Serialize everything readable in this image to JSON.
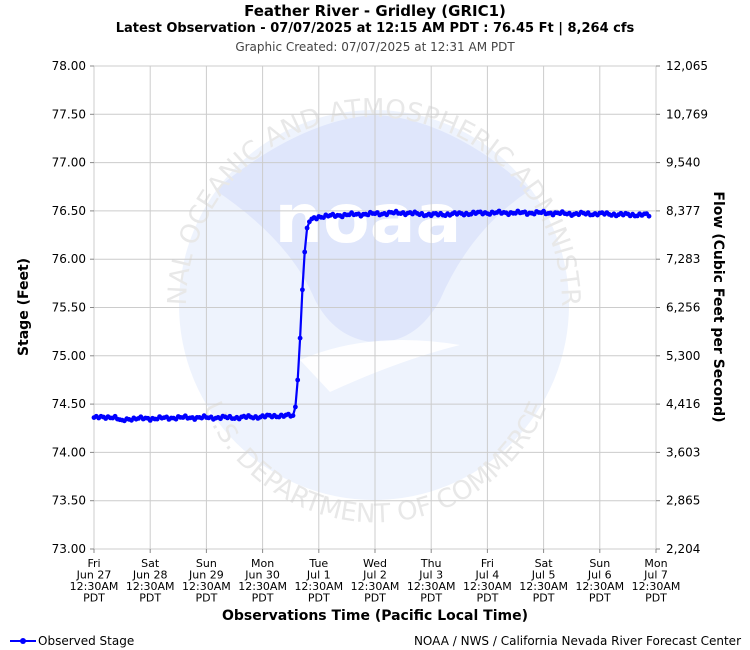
{
  "header": {
    "title": "Feather River - Gridley (GRIC1)",
    "subtitle": "Latest Observation - 07/07/2025 at 12:15 AM PDT : 76.45 Ft | 8,264 cfs",
    "created": "Graphic Created: 07/07/2025 at 12:31 AM PDT"
  },
  "legend": {
    "observed_label": "Observed Stage"
  },
  "credit": "NOAA / NWS / California Nevada River Forecast Center",
  "watermark": {
    "logo_text": "noaa",
    "ring_top": "NATIONAL OCEANIC AND ATMOSPHERIC ADMINISTRATION",
    "ring_bottom": "U.S. DEPARTMENT OF COMMERCE"
  },
  "colors": {
    "series": "#0000ff",
    "grid": "#cccccc",
    "watermark_blue": "#dfe6fb",
    "watermark_light": "#eef3fd"
  },
  "chart_data": {
    "type": "line",
    "title": "Feather River - Gridley (GRIC1)",
    "xlabel": "Observations Time (Pacific Local Time)",
    "ylabel": "Stage (Feet)",
    "y2label": "Flow (Cubic Feet per Second)",
    "ylim": [
      73.0,
      78.0
    ],
    "xlim": [
      0,
      10
    ],
    "grid": true,
    "legend_position": "bottom-left",
    "y_ticks": [
      "73.00",
      "73.50",
      "74.00",
      "74.50",
      "75.00",
      "75.50",
      "76.00",
      "76.50",
      "77.00",
      "77.50",
      "78.00"
    ],
    "y2_ticks": [
      "2,204",
      "2,865",
      "3,603",
      "4,416",
      "5,300",
      "6,256",
      "7,283",
      "8,377",
      "9,540",
      "10,769",
      "12,065"
    ],
    "x_ticks": [
      {
        "day": "Fri",
        "date": "Jun 27",
        "time": "12:30AM",
        "tz": "PDT"
      },
      {
        "day": "Sat",
        "date": "Jun 28",
        "time": "12:30AM",
        "tz": "PDT"
      },
      {
        "day": "Sun",
        "date": "Jun 29",
        "time": "12:30AM",
        "tz": "PDT"
      },
      {
        "day": "Mon",
        "date": "Jun 30",
        "time": "12:30AM",
        "tz": "PDT"
      },
      {
        "day": "Tue",
        "date": "Jul 1",
        "time": "12:30AM",
        "tz": "PDT"
      },
      {
        "day": "Wed",
        "date": "Jul 2",
        "time": "12:30AM",
        "tz": "PDT"
      },
      {
        "day": "Thu",
        "date": "Jul 3",
        "time": "12:30AM",
        "tz": "PDT"
      },
      {
        "day": "Fri",
        "date": "Jul 4",
        "time": "12:30AM",
        "tz": "PDT"
      },
      {
        "day": "Sat",
        "date": "Jul 5",
        "time": "12:30AM",
        "tz": "PDT"
      },
      {
        "day": "Sun",
        "date": "Jul 6",
        "time": "12:30AM",
        "tz": "PDT"
      },
      {
        "day": "Mon",
        "date": "Jul 7",
        "time": "12:30AM",
        "tz": "PDT"
      }
    ],
    "series": [
      {
        "name": "Observed Stage",
        "keypoints": [
          [
            0.0,
            74.36
          ],
          [
            0.15,
            74.36
          ],
          [
            0.3,
            74.37
          ],
          [
            0.4,
            74.36
          ],
          [
            0.45,
            74.33
          ],
          [
            0.5,
            74.32
          ],
          [
            0.55,
            74.34
          ],
          [
            0.65,
            74.35
          ],
          [
            1.0,
            74.35
          ],
          [
            1.5,
            74.36
          ],
          [
            2.0,
            74.36
          ],
          [
            2.5,
            74.36
          ],
          [
            3.0,
            74.37
          ],
          [
            3.3,
            74.38
          ],
          [
            3.5,
            74.38
          ],
          [
            3.55,
            74.37
          ],
          [
            3.58,
            74.45
          ],
          [
            3.62,
            74.7
          ],
          [
            3.66,
            75.1
          ],
          [
            3.7,
            75.6
          ],
          [
            3.74,
            76.0
          ],
          [
            3.78,
            76.3
          ],
          [
            3.82,
            76.38
          ],
          [
            3.9,
            76.42
          ],
          [
            4.0,
            76.44
          ],
          [
            4.5,
            76.46
          ],
          [
            5.0,
            76.47
          ],
          [
            5.4,
            76.48
          ],
          [
            5.5,
            76.48
          ],
          [
            6.0,
            76.46
          ],
          [
            6.5,
            76.47
          ],
          [
            7.0,
            76.48
          ],
          [
            7.5,
            76.48
          ],
          [
            8.0,
            76.48
          ],
          [
            8.5,
            76.47
          ],
          [
            9.0,
            76.47
          ],
          [
            9.5,
            76.46
          ],
          [
            9.8,
            76.46
          ],
          [
            9.9,
            76.45
          ]
        ]
      }
    ]
  }
}
